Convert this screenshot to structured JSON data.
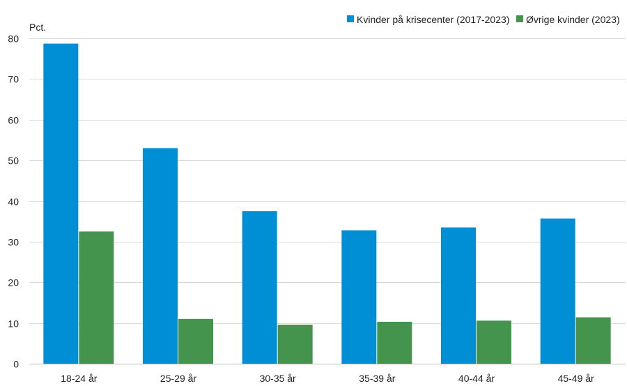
{
  "chart_data": {
    "type": "bar",
    "unit_label": "Pct.",
    "categories": [
      "18-24 år",
      "25-29 år",
      "30-35 år",
      "35-39 år",
      "40-44 år",
      "45-49 år"
    ],
    "series": [
      {
        "name": "Kvinder på krisecenter (2017-2023)",
        "color": "#008fd5",
        "values": [
          78.7,
          53.0,
          37.5,
          32.8,
          33.5,
          35.7
        ]
      },
      {
        "name": "Øvrige kvinder (2023)",
        "color": "#45944e",
        "values": [
          32.5,
          11.0,
          9.6,
          10.3,
          10.6,
          11.4
        ]
      }
    ],
    "ylim": [
      0,
      80
    ],
    "yticks": [
      0,
      10,
      20,
      30,
      40,
      50,
      60,
      70,
      80
    ],
    "grid": true,
    "legend_position": "top-right"
  }
}
